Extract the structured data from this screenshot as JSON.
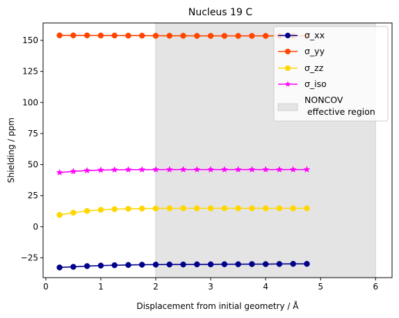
{
  "chart_data": {
    "type": "line",
    "title": "Nucleus 19 C",
    "xlabel": "Displacement from initial geometry / Å",
    "ylabel": "Shielding / ppm",
    "xlim": [
      -0.05,
      6.3
    ],
    "ylim": [
      -41,
      164
    ],
    "xticks": [
      0,
      1,
      2,
      3,
      4,
      5,
      6
    ],
    "yticks": [
      -25,
      0,
      25,
      50,
      75,
      100,
      125,
      150
    ],
    "grid": false,
    "legend_position": "top-right",
    "x": [
      0.25,
      0.5,
      0.75,
      1.0,
      1.25,
      1.5,
      1.75,
      2.0,
      2.25,
      2.5,
      2.75,
      3.0,
      3.25,
      3.5,
      3.75,
      4.0,
      4.25,
      4.5,
      4.75
    ],
    "series": [
      {
        "name": "σ_xx",
        "color": "#00008b",
        "marker": "circle",
        "values": [
          -32.8,
          -32.3,
          -31.7,
          -31.3,
          -31.0,
          -30.8,
          -30.6,
          -30.5,
          -30.4,
          -30.4,
          -30.3,
          -30.3,
          -30.2,
          -30.2,
          -30.1,
          -30.1,
          -30.0,
          -29.9,
          -29.9
        ]
      },
      {
        "name": "σ_yy",
        "color": "#ff4500",
        "marker": "circle",
        "values": [
          154.0,
          154.0,
          154.0,
          153.9,
          153.9,
          153.8,
          153.8,
          153.7,
          153.7,
          153.7,
          153.6,
          153.6,
          153.6,
          153.6,
          153.6,
          153.6,
          153.6,
          153.6,
          153.6
        ]
      },
      {
        "name": "σ_zz",
        "color": "#ffd700",
        "marker": "circle",
        "values": [
          9.5,
          11.3,
          12.7,
          13.6,
          14.1,
          14.4,
          14.6,
          14.7,
          14.8,
          14.8,
          14.8,
          14.8,
          14.8,
          14.8,
          14.8,
          14.8,
          14.8,
          14.8,
          14.8
        ]
      },
      {
        "name": "σ_iso",
        "color": "#ff00ff",
        "marker": "star",
        "values": [
          43.6,
          44.5,
          45.2,
          45.6,
          45.8,
          45.9,
          45.9,
          46.0,
          46.0,
          46.0,
          46.0,
          46.0,
          46.0,
          46.0,
          46.0,
          46.0,
          46.0,
          46.0,
          46.0
        ]
      }
    ],
    "shaded_region": {
      "label": "NONCOV\n effective region",
      "x_range": [
        2.0,
        6.0
      ],
      "color": "#e4e4e4"
    }
  }
}
